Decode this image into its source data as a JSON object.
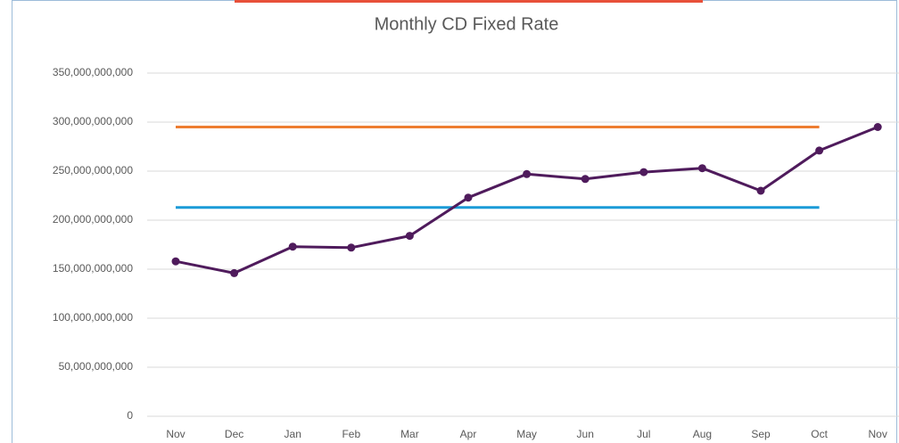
{
  "chart_data": {
    "type": "line",
    "title": "Monthly CD Fixed Rate",
    "categories": [
      "Nov",
      "Dec",
      "Jan",
      "Feb",
      "Mar",
      "Apr",
      "May",
      "Jun",
      "Jul",
      "Aug",
      "Sep",
      "Oct",
      "Nov"
    ],
    "series": [
      {
        "color": "#ed7d31",
        "marker": false,
        "values": [
          295000000000,
          295000000000,
          295000000000,
          295000000000,
          295000000000,
          295000000000,
          295000000000,
          295000000000,
          295000000000,
          295000000000,
          295000000000,
          295000000000,
          null
        ]
      },
      {
        "color": "#1b9bd7",
        "marker": false,
        "values": [
          213000000000,
          213000000000,
          213000000000,
          213000000000,
          213000000000,
          213000000000,
          213000000000,
          213000000000,
          213000000000,
          213000000000,
          213000000000,
          213000000000,
          null
        ]
      },
      {
        "color": "#4f1b5c",
        "marker": true,
        "values": [
          158000000000,
          146000000000,
          173000000000,
          172000000000,
          184000000000,
          223000000000,
          247000000000,
          242000000000,
          249000000000,
          253000000000,
          230000000000,
          271000000000,
          295000000000
        ]
      }
    ],
    "ylim": [
      0,
      350000000000
    ],
    "yticks": [
      0,
      {
        "value": 50000000000,
        "label": "50,000,000,000"
      },
      {
        "value": 100000000000,
        "label": "100,000,000,000"
      },
      {
        "value": 150000000000,
        "label": "150,000,000,000"
      },
      {
        "value": 200000000000,
        "label": "200,000,000,000"
      },
      {
        "value": 250000000000,
        "label": "250,000,000,000"
      },
      {
        "value": 300000000000,
        "label": "300,000,000,000"
      },
      {
        "value": 350000000000,
        "label": "350,000,000,000"
      }
    ],
    "grid": true
  }
}
